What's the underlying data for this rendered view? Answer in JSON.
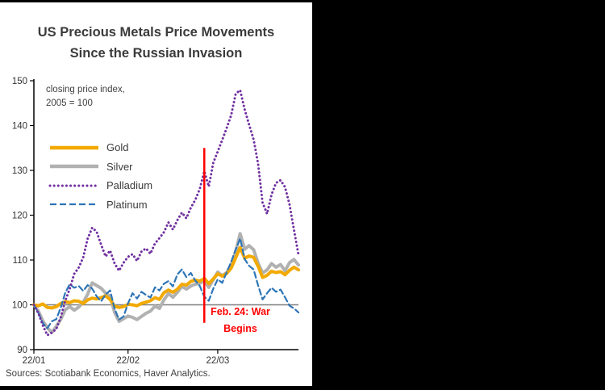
{
  "colors": {
    "page_bg": "#000000",
    "panel_bg": "#FFFFFF",
    "axis": "#000000",
    "reference_line": "#7F7F7F",
    "text": "#3B3B3B"
  },
  "title": {
    "line1": "US Precious Metals Price Movements",
    "line2": "Since the Russian Invasion"
  },
  "note": {
    "line1": "closing price index,",
    "line2": "2005 = 100"
  },
  "annotation": {
    "line1": "Feb. 24: War",
    "line2": "Begins",
    "color": "#FF0000"
  },
  "source": "Sources: Scotiabank Economics, Haver Analytics.",
  "chart_data": {
    "type": "line",
    "title": "US Precious Metals Price Movements Since the Russian Invasion",
    "ylabel": "closing price index, 2005 = 100",
    "ylim": [
      90,
      150
    ],
    "yticks": [
      90,
      100,
      110,
      120,
      130,
      140,
      150
    ],
    "xticks": [
      "22/01",
      "22/02",
      "22/03"
    ],
    "grid": false,
    "legend_position": "upper-left",
    "reference_line_y": 100,
    "event_line": {
      "date": "2022-02-24",
      "label": "Feb. 24: War Begins",
      "color": "#FF0000",
      "y_from": 96,
      "y_to": 135
    },
    "draw_order": [
      1,
      0,
      3,
      2
    ],
    "x_dates": [
      "2022-01-03",
      "2022-01-04",
      "2022-01-05",
      "2022-01-06",
      "2022-01-07",
      "2022-01-10",
      "2022-01-11",
      "2022-01-12",
      "2022-01-13",
      "2022-01-14",
      "2022-01-17",
      "2022-01-18",
      "2022-01-19",
      "2022-01-20",
      "2022-01-21",
      "2022-01-24",
      "2022-01-25",
      "2022-01-26",
      "2022-01-27",
      "2022-01-28",
      "2022-01-31",
      "2022-02-01",
      "2022-02-02",
      "2022-02-03",
      "2022-02-04",
      "2022-02-07",
      "2022-02-08",
      "2022-02-09",
      "2022-02-10",
      "2022-02-11",
      "2022-02-14",
      "2022-02-15",
      "2022-02-16",
      "2022-02-17",
      "2022-02-18",
      "2022-02-21",
      "2022-02-22",
      "2022-02-23",
      "2022-02-24",
      "2022-02-25",
      "2022-02-28",
      "2022-03-01",
      "2022-03-02",
      "2022-03-03",
      "2022-03-04",
      "2022-03-07",
      "2022-03-08",
      "2022-03-09",
      "2022-03-10",
      "2022-03-11",
      "2022-03-14",
      "2022-03-15",
      "2022-03-16",
      "2022-03-17",
      "2022-03-18",
      "2022-03-21",
      "2022-03-22",
      "2022-03-23",
      "2022-03-24",
      "2022-03-25"
    ],
    "series": [
      {
        "name": "Gold",
        "color": "#F2A900",
        "style": "solid",
        "width": 4,
        "values": [
          100.0,
          99.8,
          100.2,
          99.4,
          99.3,
          99.6,
          100.3,
          100.7,
          100.5,
          100.9,
          100.8,
          100.3,
          101.1,
          101.5,
          101.3,
          101.6,
          102.0,
          101.2,
          99.7,
          99.4,
          99.6,
          100.1,
          100.0,
          99.8,
          100.3,
          100.6,
          100.9,
          101.6,
          101.2,
          102.7,
          103.3,
          102.8,
          103.5,
          104.6,
          104.4,
          105.2,
          105.5,
          105.3,
          105.9,
          104.7,
          105.8,
          106.9,
          106.4,
          107.0,
          108.2,
          110.5,
          112.8,
          110.4,
          110.9,
          110.6,
          108.6,
          106.1,
          106.6,
          107.5,
          107.2,
          107.4,
          106.7,
          107.7,
          108.4,
          107.8
        ]
      },
      {
        "name": "Silver",
        "color": "#B1B1B1",
        "style": "solid",
        "width": 4,
        "values": [
          100.0,
          98.6,
          96.4,
          94.9,
          93.8,
          95.2,
          96.8,
          98.9,
          99.6,
          98.8,
          99.5,
          100.6,
          102.4,
          104.9,
          104.3,
          103.7,
          102.6,
          101.9,
          98.3,
          96.3,
          96.9,
          97.5,
          97.2,
          96.7,
          97.4,
          98.1,
          98.6,
          99.7,
          99.2,
          101.1,
          102.5,
          101.7,
          102.8,
          104.1,
          103.5,
          104.2,
          104.6,
          104.8,
          105.4,
          103.9,
          105.6,
          107.3,
          106.5,
          107.2,
          108.9,
          111.9,
          115.9,
          112.4,
          113.2,
          112.3,
          109.3,
          107.1,
          107.8,
          109.2,
          108.4,
          109.0,
          107.6,
          109.4,
          110.1,
          108.9
        ]
      },
      {
        "name": "Palladium",
        "color": "#7030A0",
        "style": "dotted",
        "width": 3,
        "values": [
          100.0,
          98.1,
          95.4,
          93.2,
          93.8,
          94.6,
          97.3,
          100.9,
          103.6,
          106.9,
          108.3,
          110.6,
          114.8,
          117.2,
          116.3,
          113.4,
          110.8,
          112.1,
          109.2,
          107.6,
          109.4,
          110.7,
          111.3,
          109.8,
          111.9,
          112.6,
          111.4,
          113.7,
          114.9,
          116.2,
          118.4,
          116.8,
          118.9,
          120.6,
          119.3,
          121.7,
          123.4,
          125.9,
          129.8,
          126.4,
          131.7,
          134.2,
          136.8,
          139.5,
          142.3,
          147.1,
          147.9,
          143.6,
          140.2,
          136.9,
          131.4,
          122.8,
          120.3,
          124.6,
          127.2,
          127.8,
          126.3,
          122.4,
          116.8,
          111.2
        ]
      },
      {
        "name": "Platinum",
        "color": "#2E75B6",
        "style": "dashed",
        "width": 2.2,
        "values": [
          100.0,
          98.2,
          95.9,
          94.8,
          96.3,
          96.8,
          99.4,
          102.7,
          104.6,
          103.8,
          104.2,
          103.1,
          104.4,
          103.6,
          101.9,
          100.8,
          102.3,
          103.2,
          99.1,
          96.7,
          97.4,
          100.3,
          102.6,
          101.4,
          102.9,
          102.2,
          101.6,
          103.9,
          103.2,
          104.7,
          105.3,
          104.1,
          106.8,
          107.9,
          106.2,
          107.1,
          105.4,
          104.2,
          101.8,
          100.9,
          103.6,
          105.7,
          104.9,
          107.3,
          109.6,
          112.4,
          114.8,
          110.2,
          108.7,
          107.9,
          104.3,
          101.2,
          102.6,
          103.8,
          102.9,
          103.4,
          101.7,
          99.8,
          99.2,
          98.3
        ]
      }
    ]
  }
}
